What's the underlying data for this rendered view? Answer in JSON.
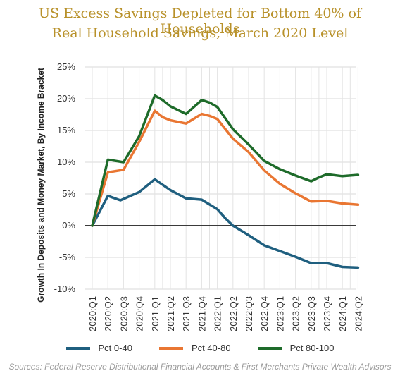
{
  "title_line1": "US Excess Savings Depleted for Bottom 40% of Households",
  "title_line2": "Real Household Savings, March 2020 Level",
  "source": "Sources: Federal Reserve Distributional Financial Accounts & First Merchants Private Wealth Advisors",
  "chart_data": {
    "type": "line",
    "ylabel": "Growth In Deposits and Money Market, By Income Bracket",
    "ylim": [
      -10,
      25
    ],
    "yticks": [
      25,
      20,
      15,
      10,
      5,
      0,
      -5,
      -10
    ],
    "ytick_labels": [
      "25%",
      "20%",
      "15%",
      "10%",
      "5%",
      "0%",
      "-5%",
      "-10%"
    ],
    "categories": [
      "2020:Q1",
      "2020:Q2",
      "2020:Q3",
      "2020:Q4",
      "2021:Q1",
      "2021:Q2",
      "2021:Q3",
      "2021:Q4",
      "2022:Q1",
      "2022:Q2",
      "2022:Q3",
      "2022:Q4",
      "2023:Q1",
      "2023:Q2",
      "2023:Q3",
      "2023:Q4",
      "2024:Q1",
      "2024:Q2"
    ],
    "x_positions": [
      0,
      1,
      2,
      3,
      4,
      5,
      6,
      7,
      8,
      9,
      10,
      11,
      12,
      13,
      14,
      15,
      16,
      17
    ],
    "x_extra": [
      4.5,
      7.5,
      14.5,
      16.5
    ],
    "series": [
      {
        "name": "Pct 0-40",
        "color": "#1f5f7f",
        "x": [
          0,
          1,
          1.8,
          3,
          4,
          5,
          6,
          7,
          8,
          8.5,
          9,
          10,
          11,
          12,
          13,
          14,
          15,
          16,
          17
        ],
        "values": [
          0,
          4.7,
          4.0,
          5.3,
          7.3,
          5.6,
          4.3,
          4.1,
          2.6,
          1.2,
          0,
          -1.5,
          -3.1,
          -4.0,
          -4.9,
          -5.9,
          -5.9,
          -6.5,
          -6.6
        ]
      },
      {
        "name": "Pct 40-80",
        "color": "#e97632",
        "x": [
          0,
          1,
          2,
          3,
          4,
          4.5,
          5,
          6,
          7,
          7.5,
          8,
          9,
          10,
          11,
          12,
          13,
          14,
          15,
          16,
          17
        ],
        "values": [
          0,
          8.4,
          8.8,
          13.2,
          18.1,
          17.1,
          16.6,
          16.1,
          17.6,
          17.3,
          16.8,
          13.7,
          11.6,
          8.7,
          6.6,
          5.1,
          3.8,
          3.9,
          3.5,
          3.3
        ]
      },
      {
        "name": "Pct 80-100",
        "color": "#1e6b2a",
        "x": [
          0,
          1,
          2,
          3,
          4,
          4.5,
          5,
          6,
          7,
          7.5,
          8,
          9,
          10,
          11,
          12,
          13,
          14,
          14.5,
          15,
          16,
          17
        ],
        "values": [
          0,
          10.4,
          10.0,
          14.1,
          20.5,
          19.8,
          18.8,
          17.6,
          19.8,
          19.4,
          18.7,
          15.2,
          12.8,
          10.2,
          8.9,
          7.9,
          7.0,
          7.6,
          8.1,
          7.8,
          8.0
        ]
      }
    ],
    "zero_line": true,
    "grid": true,
    "legend": "bottom"
  }
}
